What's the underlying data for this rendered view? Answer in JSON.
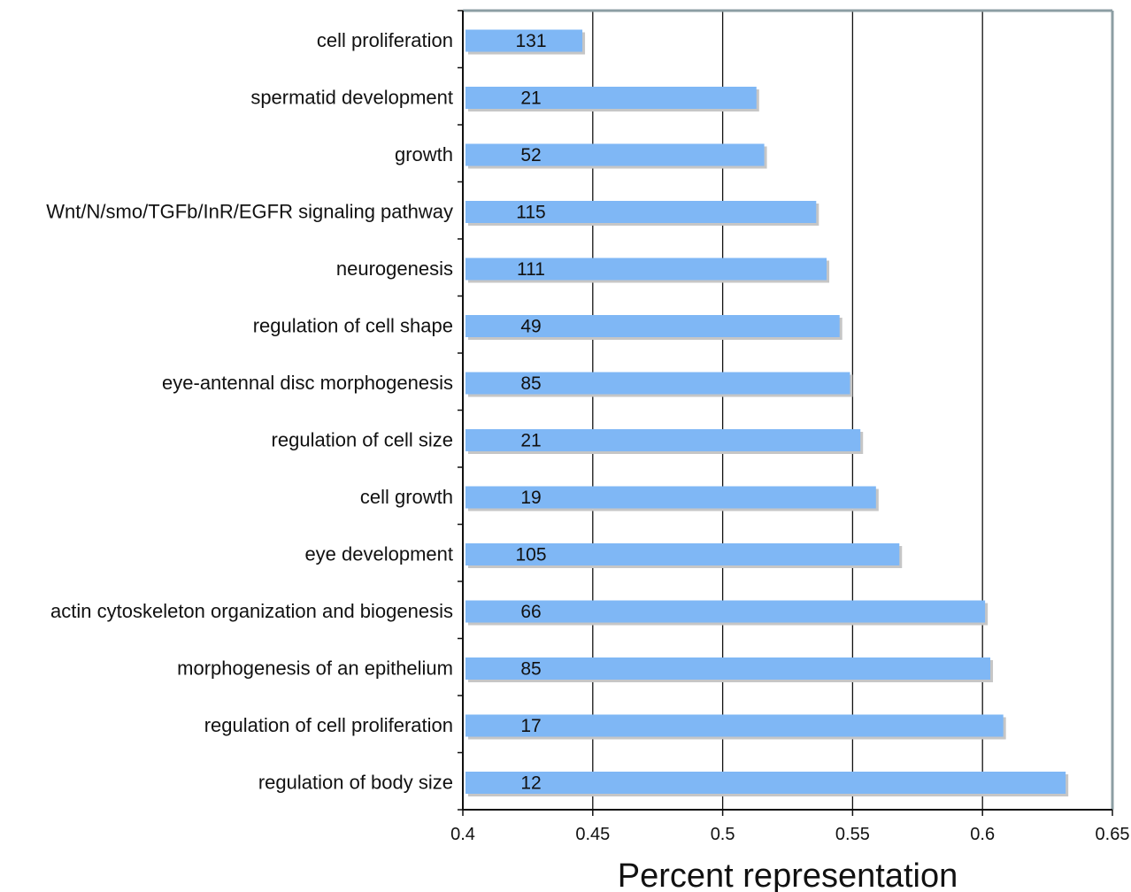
{
  "chart_data": {
    "type": "bar",
    "orientation": "horizontal",
    "xlabel": "Percent representation",
    "ylabel": "",
    "xlim": [
      0.4,
      0.65
    ],
    "xticks": [
      "0.4",
      "0.45",
      "0.5",
      "0.55",
      "0.6",
      "0.65"
    ],
    "grid": "vertical lines at major ticks",
    "categories": [
      "cell proliferation",
      "spermatid development",
      "growth",
      "Wnt/N/smo/TGFb/InR/EGFR signaling pathway",
      "neurogenesis",
      "regulation of cell shape",
      "eye-antennal disc morphogenesis",
      "regulation of cell size",
      "cell growth",
      "eye development",
      "actin cytoskeleton organization and biogenesis",
      "morphogenesis of an epithelium",
      "regulation of cell proliferation",
      "regulation of body size"
    ],
    "values": [
      0.446,
      0.513,
      0.516,
      0.536,
      0.54,
      0.545,
      0.549,
      0.553,
      0.559,
      0.568,
      0.601,
      0.603,
      0.608,
      0.632
    ],
    "data_labels": [
      "131",
      "21",
      "52",
      "115",
      "111",
      "49",
      "85",
      "21",
      "19",
      "105",
      "66",
      "85",
      "17",
      "12"
    ],
    "colors": {
      "bar": "#7fb7f5",
      "shadow": "#c6c6c6",
      "frame": "#8c9ea3",
      "axis": "#111111",
      "grid": "#111111"
    }
  }
}
